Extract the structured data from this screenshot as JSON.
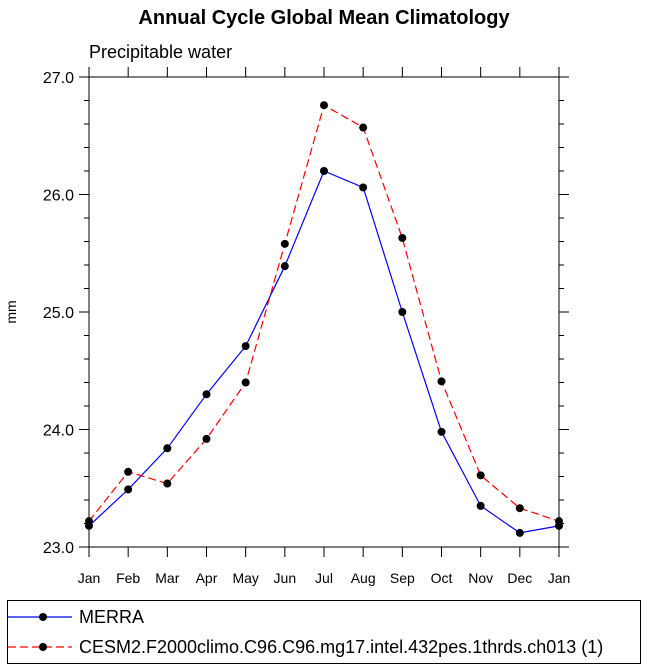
{
  "chart_data": {
    "type": "line",
    "title": "Annual Cycle Global Mean Climatology",
    "subtitle": "Precipitable water",
    "xlabel": "",
    "ylabel": "mm",
    "categories": [
      "Jan",
      "Feb",
      "Mar",
      "Apr",
      "May",
      "Jun",
      "Jul",
      "Aug",
      "Sep",
      "Oct",
      "Nov",
      "Dec",
      "Jan"
    ],
    "ylim": [
      23.0,
      27.0
    ],
    "yticks": [
      23.0,
      24.0,
      25.0,
      26.0,
      27.0
    ],
    "ytick_labels": [
      "23.0",
      "24.0",
      "25.0",
      "26.0",
      "27.0"
    ],
    "y_minor_step": 0.2,
    "series": [
      {
        "name": "MERRA",
        "color": "#0000ff",
        "dash": "solid",
        "values": [
          23.18,
          23.49,
          23.84,
          24.3,
          24.71,
          25.39,
          26.2,
          26.06,
          25.0,
          23.98,
          23.35,
          23.12,
          23.18
        ]
      },
      {
        "name": "CESM2.F2000climo.C96.C96.mg17.intel.432pes.1thrds.ch013 (1)",
        "color": "#ff0000",
        "dash": "dashed",
        "values": [
          23.22,
          23.64,
          23.54,
          23.92,
          24.4,
          25.58,
          26.76,
          26.57,
          25.63,
          24.41,
          23.61,
          23.33,
          23.22
        ]
      }
    ],
    "legend_position": "bottom"
  }
}
